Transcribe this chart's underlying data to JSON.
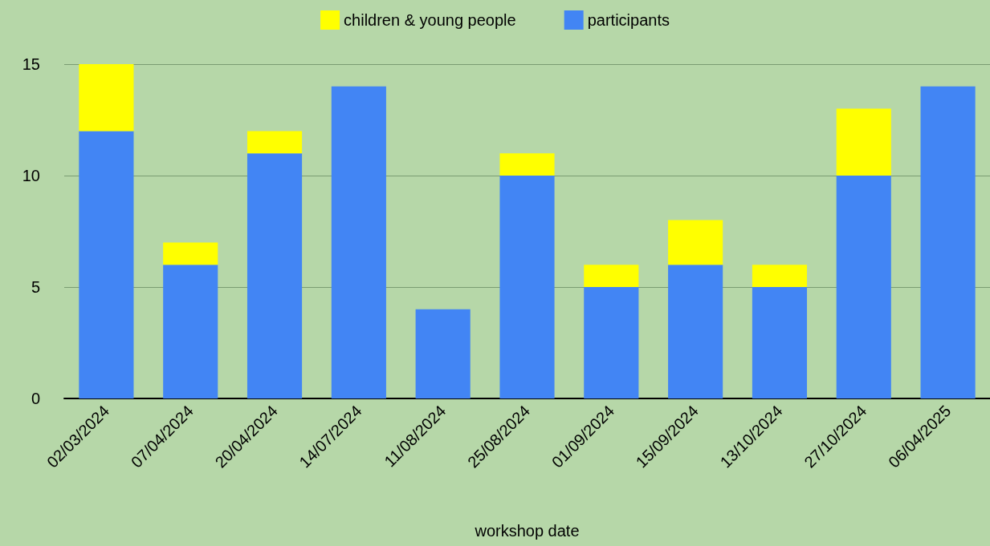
{
  "chart_data": {
    "type": "bar",
    "xlabel": "workshop date",
    "stacked": true,
    "categories": [
      "02/03/2024",
      "07/04/2024",
      "20/04/2024",
      "14/07/2024",
      "11/08/2024",
      "25/08/2024",
      "01/09/2024",
      "15/09/2024",
      "13/10/2024",
      "27/10/2024",
      "06/04/2025"
    ],
    "series": [
      {
        "name": "participants",
        "color": "#4285f4",
        "values": [
          12,
          6,
          11,
          14,
          4,
          10,
          5,
          6,
          5,
          10,
          14
        ]
      },
      {
        "name": "children & young people",
        "color": "#ffff00",
        "values": [
          3,
          1,
          1,
          0,
          0,
          1,
          1,
          2,
          1,
          3,
          0
        ]
      }
    ],
    "ylim": [
      0,
      15
    ],
    "yticks": [
      0,
      5,
      10,
      15
    ],
    "grid": "y",
    "legend": "top"
  }
}
